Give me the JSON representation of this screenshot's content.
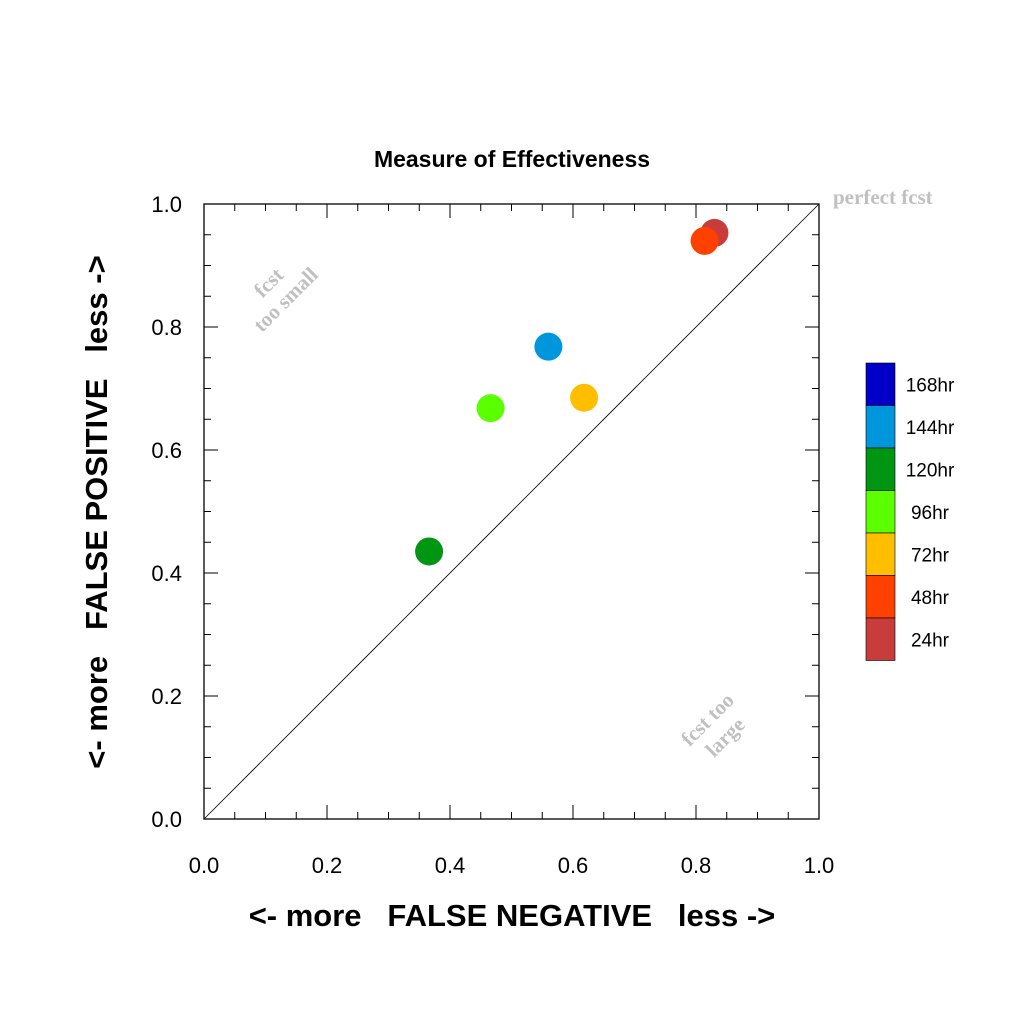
{
  "chart_data": {
    "type": "scatter",
    "title": "Measure of Effectiveness",
    "xlabel": "<- more   FALSE NEGATIVE   less ->",
    "ylabel": "<- more   FALSE POSITIVE   less ->",
    "xlim": [
      0.0,
      1.0
    ],
    "ylim": [
      0.0,
      1.0
    ],
    "x_ticks": [
      "0.0",
      "0.2",
      "0.4",
      "0.6",
      "0.8",
      "1.0"
    ],
    "y_ticks": [
      "0.0",
      "0.2",
      "0.4",
      "0.6",
      "0.8",
      "1.0"
    ],
    "grid": false,
    "diagonal_line": true,
    "annotations": {
      "perfect": "perfect fcst",
      "too_small_line1": "fcst",
      "too_small_line2": "too small",
      "too_large_line1": "fcst too",
      "too_large_line2": "large"
    },
    "legend_position": "right",
    "series": [
      {
        "name": "168hr",
        "color": "#0000c8",
        "points": []
      },
      {
        "name": "144hr",
        "color": "#0096dc",
        "points": [
          [
            0.56,
            0.768
          ]
        ]
      },
      {
        "name": "120hr",
        "color": "#009614",
        "points": [
          [
            0.366,
            0.435
          ]
        ]
      },
      {
        "name": "96hr",
        "color": "#5aff00",
        "points": [
          [
            0.466,
            0.668
          ]
        ]
      },
      {
        "name": "72hr",
        "color": "#ffbe00",
        "points": [
          [
            0.618,
            0.685
          ]
        ]
      },
      {
        "name": "48hr",
        "color": "#ff4100",
        "points": [
          [
            0.814,
            0.94
          ]
        ]
      },
      {
        "name": "24hr",
        "color": "#c83c3c",
        "points": [
          [
            0.83,
            0.953
          ]
        ]
      }
    ]
  }
}
